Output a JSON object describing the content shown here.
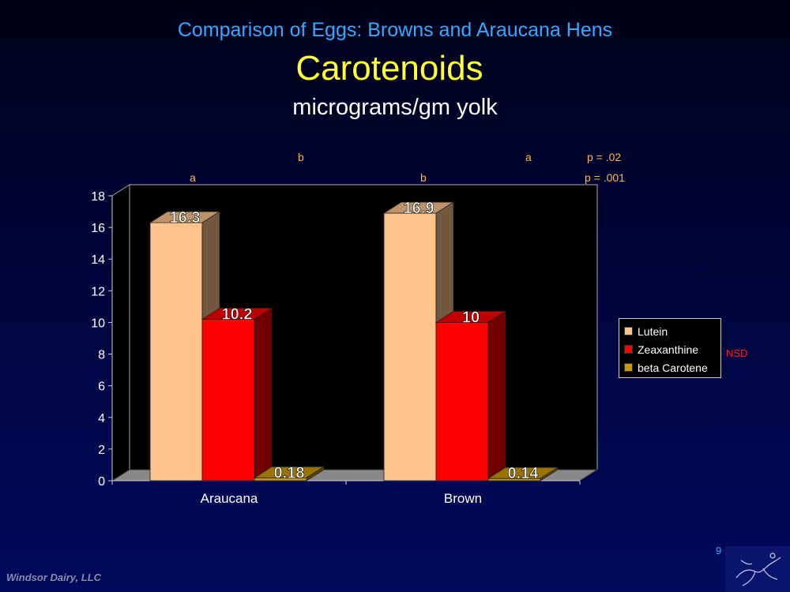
{
  "slide": {
    "title_top": "Comparison of Eggs: Browns and Araucana Hens",
    "title_main": "Carotenoids",
    "title_sub": "micrograms/gm yolk",
    "footer": "Windsor Dairy, LLC",
    "page_number": "9"
  },
  "annotations": {
    "row1": [
      "b",
      "a",
      "p = .02"
    ],
    "row2": [
      "a",
      "b",
      "p = .001"
    ],
    "nsd": "NSD"
  },
  "colors": {
    "lutein": "#ffc48c",
    "zeaxanthine": "#ff0000",
    "beta_carotene": "#cc9900",
    "annotation": "#ffb84d"
  },
  "chart_data": {
    "type": "bar",
    "categories": [
      "Araucana",
      "Brown"
    ],
    "series": [
      {
        "name": "Lutein",
        "values": [
          16.3,
          16.9
        ]
      },
      {
        "name": "Zeaxanthine",
        "values": [
          10.2,
          10
        ]
      },
      {
        "name": "beta Carotene",
        "values": [
          0.18,
          0.14
        ]
      }
    ],
    "ylim": [
      0,
      18
    ],
    "yticks": [
      0,
      2,
      4,
      6,
      8,
      10,
      12,
      14,
      16,
      18
    ],
    "data_labels": [
      [
        "16.3",
        "16.9"
      ],
      [
        "10.2",
        "10"
      ],
      [
        "0.18",
        "0.14"
      ]
    ],
    "legend_position": "right",
    "grid": false,
    "style": "3d-bar"
  }
}
